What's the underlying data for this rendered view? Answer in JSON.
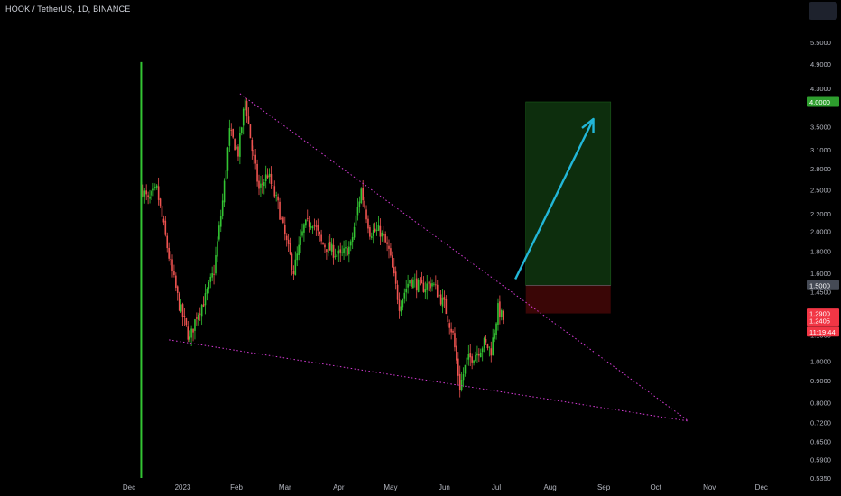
{
  "header": {
    "title": "HOOK / TetherUS, 1D, BINANCE"
  },
  "colors": {
    "background": "#000000",
    "up": "#26a69a",
    "up_bright": "#33c433",
    "down": "#ef5350",
    "trendline": "#d63bd6",
    "arrow": "#22b7d8",
    "target_zone": "#0d2e0d",
    "stop_zone": "#3a0606",
    "axis_text": "#b2b5be",
    "badge_green": "#2e9e2e",
    "badge_red": "#f23645",
    "badge_gray": "#454a55"
  },
  "chart_data": {
    "type": "candlestick",
    "symbol": "HOOK / TetherUS",
    "interval": "1D",
    "exchange": "BINANCE",
    "scale": "log",
    "x_ticks": [
      "Dec",
      "2023",
      "Feb",
      "Mar",
      "Apr",
      "May",
      "Jun",
      "Jul",
      "Aug",
      "Sep",
      "Oct",
      "Nov",
      "Dec"
    ],
    "y_ticks": [
      "5.5000",
      "4.9000",
      "4.3000",
      "3.5000",
      "3.1000",
      "2.8000",
      "2.5000",
      "2.2000",
      "2.0000",
      "1.8000",
      "1.6000",
      "1.4500",
      "1.1500",
      "1.0000",
      "0.9000",
      "0.8000",
      "0.7200",
      "0.6500",
      "0.5900",
      "0.5350"
    ],
    "price_badges": [
      {
        "label": "4.0000",
        "price": 4.0,
        "kind": "target"
      },
      {
        "label": "1.5000",
        "price": 1.5,
        "kind": "entry"
      },
      {
        "label": "1.2900",
        "price": 1.29,
        "kind": "stop"
      },
      {
        "label": "1.2405",
        "price": 1.2405,
        "kind": "last"
      },
      {
        "label": "11:19:44",
        "price": 1.17,
        "kind": "countdown"
      }
    ],
    "listing_candle": {
      "date": "2022-12-08",
      "open": 0.54,
      "high": 4.95,
      "low": 0.54,
      "close": 2.55
    },
    "waypoints": [
      [
        "2022-12-08",
        2.55
      ],
      [
        "2022-12-12",
        2.35
      ],
      [
        "2022-12-17",
        2.5
      ],
      [
        "2022-12-20",
        2.15
      ],
      [
        "2022-12-24",
        1.75
      ],
      [
        "2022-12-30",
        1.35
      ],
      [
        "2023-01-05",
        1.12
      ],
      [
        "2023-01-09",
        1.28
      ],
      [
        "2023-01-14",
        1.4
      ],
      [
        "2023-01-19",
        1.62
      ],
      [
        "2023-01-24",
        2.35
      ],
      [
        "2023-01-28",
        3.4
      ],
      [
        "2023-02-02",
        3.05
      ],
      [
        "2023-02-06",
        4.05
      ],
      [
        "2023-02-10",
        3.1
      ],
      [
        "2023-02-14",
        2.5
      ],
      [
        "2023-02-19",
        2.72
      ],
      [
        "2023-02-25",
        2.3
      ],
      [
        "2023-03-01",
        1.95
      ],
      [
        "2023-03-06",
        1.62
      ],
      [
        "2023-03-12",
        2.05
      ],
      [
        "2023-03-17",
        2.12
      ],
      [
        "2023-03-22",
        1.88
      ],
      [
        "2023-03-27",
        1.82
      ],
      [
        "2023-04-02",
        1.75
      ],
      [
        "2023-04-08",
        1.85
      ],
      [
        "2023-04-14",
        2.5
      ],
      [
        "2023-04-19",
        2.0
      ],
      [
        "2023-04-25",
        2.0
      ],
      [
        "2023-04-30",
        1.8
      ],
      [
        "2023-05-06",
        1.35
      ],
      [
        "2023-05-12",
        1.55
      ],
      [
        "2023-05-19",
        1.48
      ],
      [
        "2023-05-25",
        1.52
      ],
      [
        "2023-06-01",
        1.35
      ],
      [
        "2023-06-06",
        1.15
      ],
      [
        "2023-06-10",
        0.87
      ],
      [
        "2023-06-14",
        1.0
      ],
      [
        "2023-06-20",
        1.05
      ],
      [
        "2023-06-24",
        1.1
      ],
      [
        "2023-06-28",
        1.06
      ],
      [
        "2023-07-02",
        1.32
      ],
      [
        "2023-07-05",
        1.25
      ]
    ],
    "trendlines": [
      {
        "name": "upper",
        "from": [
          "2023-02-03",
          4.18
        ],
        "to": [
          "2023-10-20",
          0.725
        ]
      },
      {
        "name": "lower",
        "from": [
          "2022-12-24",
          1.12
        ],
        "to": [
          "2023-10-20",
          0.725
        ]
      }
    ],
    "position": {
      "type": "long",
      "start": "2023-07-18",
      "end": "2023-09-05",
      "entry": 1.5,
      "target": 4.0,
      "stop": 1.29
    },
    "arrow": {
      "from": [
        "2023-07-12",
        1.55
      ],
      "to": [
        "2023-08-26",
        3.65
      ]
    }
  }
}
